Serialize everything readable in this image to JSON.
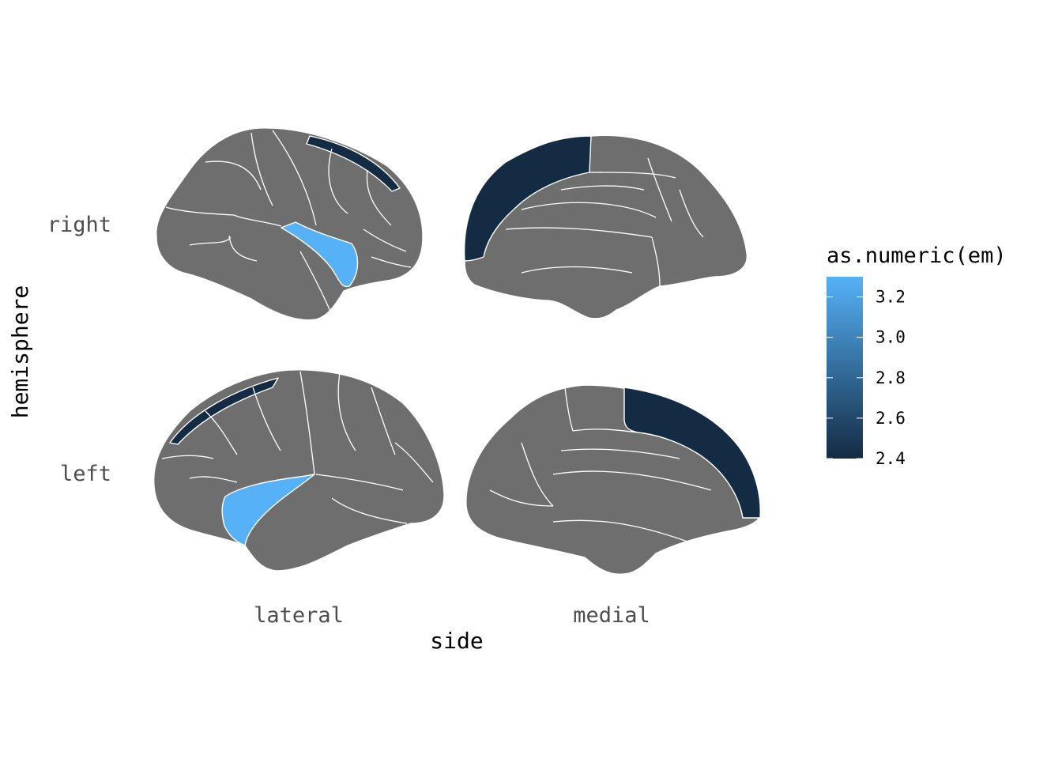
{
  "chart_data": {
    "type": "brain-atlas-map",
    "x_axis": {
      "title": "side",
      "categories": [
        "lateral",
        "medial"
      ]
    },
    "y_axis": {
      "title": "hemisphere",
      "categories": [
        "right",
        "left"
      ]
    },
    "legend": {
      "title": "as.numeric(em)",
      "position": "right",
      "range": [
        2.4,
        3.3
      ],
      "ticks": [
        "3.2",
        "3.0",
        "2.8",
        "2.6",
        "2.4"
      ],
      "color_low": "#132B43",
      "color_high": "#56B1F7"
    },
    "na_color": "#6e6e6e",
    "highlighted_regions": [
      {
        "name": "superior frontal",
        "value": 2.4
      },
      {
        "name": "superior temporal / insula",
        "value": 3.3
      }
    ]
  }
}
